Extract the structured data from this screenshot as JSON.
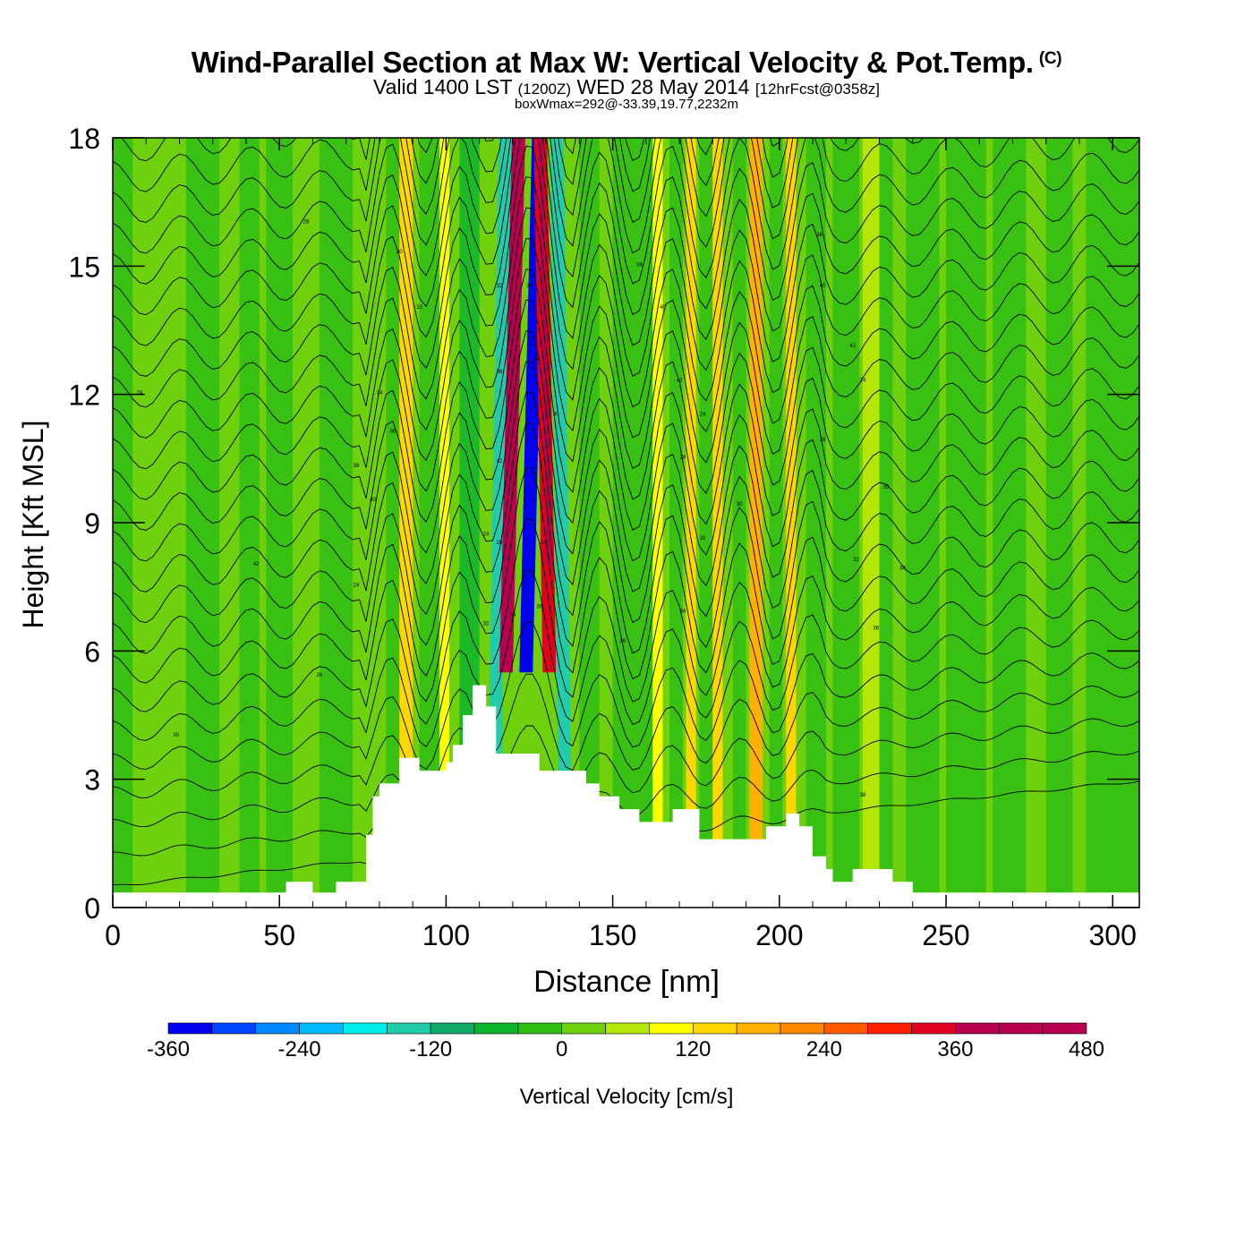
{
  "title": "Wind-Parallel Section at Max W: Vertical Velocity & Pot.Temp.",
  "copyright": "(C)",
  "subtitle_main": "Valid 1400 LST",
  "subtitle_zulu": "(1200Z)",
  "subtitle_date": "WED 28 May 2014",
  "subtitle_fcst": "[12hrFcst@0358z]",
  "box_info": "boxWmax=292@-33.39,19.77,2232m",
  "chart_data": {
    "type": "heatmap",
    "title": "Wind-Parallel Section at Max W: Vertical Velocity & Pot.Temp.",
    "xlabel": "Distance [nm]",
    "ylabel": "Height [Kft MSL]",
    "xlim": [
      0,
      308
    ],
    "ylim": [
      0,
      18
    ],
    "x_ticks": [
      "0",
      "50",
      "100",
      "150",
      "200",
      "250",
      "300"
    ],
    "y_ticks": [
      "0",
      "3",
      "6",
      "9",
      "12",
      "15",
      "18"
    ],
    "colorbar": {
      "label": "Vertical Velocity [cm/s]",
      "min": -360,
      "max": 480,
      "step": 40,
      "tick_labels": [
        "-360",
        "-240",
        "-120",
        "0",
        "120",
        "240",
        "360",
        "480"
      ],
      "colors": [
        "#0000ee",
        "#0044ff",
        "#0088ff",
        "#00bbff",
        "#00eeee",
        "#22ccaa",
        "#11aa66",
        "#0db52d",
        "#2fbd14",
        "#6fd10e",
        "#b5e60a",
        "#ffff00",
        "#ffd700",
        "#ffb000",
        "#ff8800",
        "#ff5a00",
        "#ff2000",
        "#e00020",
        "#b80050",
        "#b80050",
        "#b80050"
      ]
    },
    "vertical_velocity_bands": [
      {
        "x": 86,
        "w": 4,
        "value": 150
      },
      {
        "x": 98,
        "w": 3,
        "value": 100
      },
      {
        "x": 112,
        "w": 4,
        "value": -150
      },
      {
        "x": 116,
        "w": 4,
        "value": 380
      },
      {
        "x": 122,
        "w": 4,
        "value": -330
      },
      {
        "x": 129,
        "w": 4,
        "value": 340
      },
      {
        "x": 134,
        "w": 4,
        "value": -150
      },
      {
        "x": 162,
        "w": 3,
        "value": 80
      },
      {
        "x": 172,
        "w": 3,
        "value": 120
      },
      {
        "x": 180,
        "w": 3,
        "value": 140
      },
      {
        "x": 191,
        "w": 4,
        "value": 170
      },
      {
        "x": 202,
        "w": 3,
        "value": 120
      },
      {
        "x": 225,
        "w": 5,
        "value": 60
      }
    ],
    "terrain_kft": [
      [
        0,
        0.35
      ],
      [
        52,
        0.35
      ],
      [
        52,
        0.6
      ],
      [
        60,
        0.6
      ],
      [
        60,
        0.35
      ],
      [
        67,
        0.35
      ],
      [
        67,
        0.6
      ],
      [
        76,
        0.6
      ],
      [
        76,
        1.7
      ],
      [
        78,
        1.7
      ],
      [
        78,
        2.6
      ],
      [
        80,
        2.6
      ],
      [
        80,
        2.9
      ],
      [
        86,
        2.9
      ],
      [
        86,
        3.5
      ],
      [
        92,
        3.5
      ],
      [
        92,
        3.2
      ],
      [
        100,
        3.2
      ],
      [
        100,
        3.4
      ],
      [
        102,
        3.4
      ],
      [
        102,
        3.8
      ],
      [
        105,
        3.8
      ],
      [
        105,
        4.5
      ],
      [
        108,
        4.5
      ],
      [
        108,
        5.2
      ],
      [
        112,
        5.2
      ],
      [
        112,
        4.7
      ],
      [
        115,
        4.7
      ],
      [
        115,
        3.6
      ],
      [
        128,
        3.6
      ],
      [
        128,
        3.2
      ],
      [
        142,
        3.2
      ],
      [
        142,
        2.9
      ],
      [
        146,
        2.9
      ],
      [
        146,
        2.6
      ],
      [
        152,
        2.6
      ],
      [
        152,
        2.3
      ],
      [
        158,
        2.3
      ],
      [
        158,
        2.0
      ],
      [
        168,
        2.0
      ],
      [
        168,
        2.3
      ],
      [
        176,
        2.3
      ],
      [
        176,
        1.6
      ],
      [
        196,
        1.6
      ],
      [
        196,
        1.9
      ],
      [
        202,
        1.9
      ],
      [
        202,
        2.2
      ],
      [
        206,
        2.2
      ],
      [
        206,
        1.9
      ],
      [
        210,
        1.9
      ],
      [
        210,
        1.2
      ],
      [
        214,
        1.2
      ],
      [
        214,
        0.9
      ],
      [
        216,
        0.9
      ],
      [
        216,
        0.6
      ],
      [
        222,
        0.6
      ],
      [
        222,
        0.9
      ],
      [
        234,
        0.9
      ],
      [
        234,
        0.6
      ],
      [
        240,
        0.6
      ],
      [
        240,
        0.35
      ],
      [
        308,
        0.35
      ]
    ],
    "potential_temperature_contours": "black isentropes ~1K spacing, steeply tilted near 110-135 nm (mountain wave)",
    "contour_labels": [
      "24",
      "28",
      "30",
      "32",
      "34",
      "36",
      "38",
      "40",
      "42"
    ]
  }
}
